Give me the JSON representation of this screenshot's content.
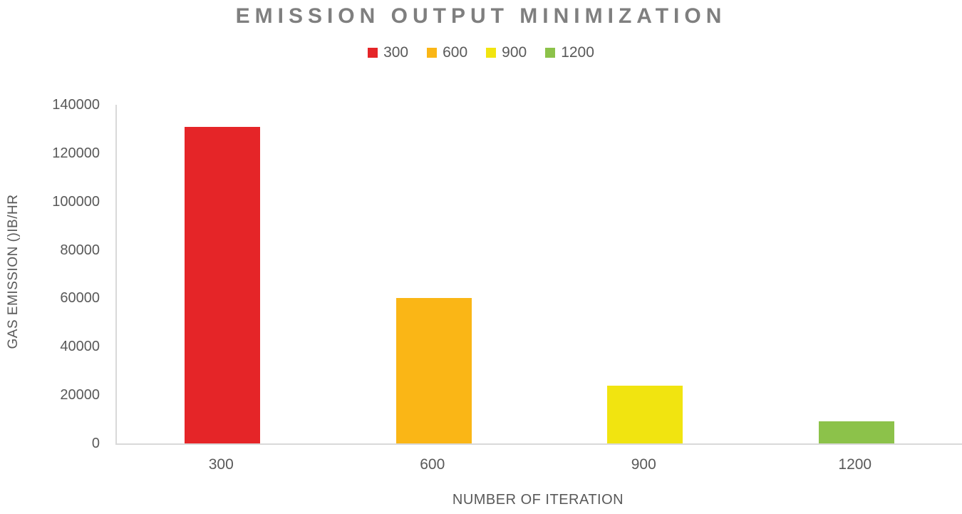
{
  "chart_data": {
    "type": "bar",
    "title": "EMISSION OUTPUT MINIMIZATION",
    "xlabel": "NUMBER OF ITERATION",
    "ylabel": "GAS EMISSION ()IB/HR",
    "categories": [
      "300",
      "600",
      "900",
      "1200"
    ],
    "values": [
      131000,
      60000,
      24000,
      9000
    ],
    "bar_colors": [
      "#e52528",
      "#fab616",
      "#f1e410",
      "#8cc24a"
    ],
    "legend": [
      {
        "label": "300",
        "color": "#e52528"
      },
      {
        "label": "600",
        "color": "#fab616"
      },
      {
        "label": "900",
        "color": "#f1e410"
      },
      {
        "label": "1200",
        "color": "#8cc24a"
      }
    ],
    "legend_position": "top",
    "grid": false,
    "ylim": [
      0,
      140000
    ],
    "ytick_step": 20000,
    "ytick_labels": [
      "0",
      "20000",
      "40000",
      "60000",
      "80000",
      "100000",
      "120000",
      "140000"
    ]
  },
  "colors": {
    "title_text": "#7f7f7f",
    "axis_text": "#595959",
    "axis_line": "#d9d9d9",
    "background": "#ffffff"
  }
}
